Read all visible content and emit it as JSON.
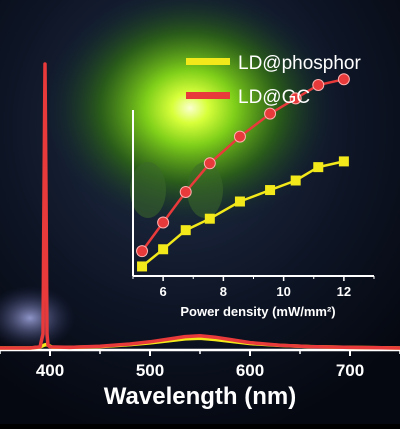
{
  "chart_data": [
    {
      "type": "line",
      "xlabel": "Wavelength (nm)",
      "ylabel": "",
      "xlim": [
        350,
        750
      ],
      "ylim": [
        0,
        1.0
      ],
      "xticks": [
        400,
        500,
        600,
        700
      ],
      "grid": false,
      "series": [
        {
          "name": "LD@phosphor",
          "color": "#f2e81a",
          "x": [
            350,
            380,
            390,
            394,
            396,
            398,
            402,
            420,
            450,
            480,
            500,
            520,
            535,
            550,
            565,
            580,
            600,
            630,
            660,
            700,
            750
          ],
          "y": [
            0.0,
            0.0,
            0.003,
            0.01,
            0.012,
            0.01,
            0.003,
            0.002,
            0.005,
            0.012,
            0.018,
            0.026,
            0.032,
            0.034,
            0.03,
            0.024,
            0.016,
            0.009,
            0.005,
            0.002,
            0.0
          ]
        },
        {
          "name": "LD@GC",
          "color": "#e83a3a",
          "x": [
            350,
            380,
            390,
            393,
            394,
            395,
            396,
            397,
            398,
            400,
            420,
            450,
            480,
            500,
            520,
            535,
            550,
            565,
            580,
            600,
            630,
            660,
            700,
            750
          ],
          "y": [
            0.0,
            0.0,
            0.004,
            0.05,
            0.55,
            1.0,
            0.55,
            0.05,
            0.01,
            0.004,
            0.002,
            0.006,
            0.014,
            0.022,
            0.032,
            0.04,
            0.043,
            0.038,
            0.03,
            0.019,
            0.01,
            0.005,
            0.002,
            0.0
          ]
        }
      ]
    },
    {
      "type": "line",
      "xlabel": "Power density (mW/mm²)",
      "ylabel": "",
      "xlim": [
        5.0,
        13.0
      ],
      "ylim": [
        0,
        1
      ],
      "xticks": [
        6,
        8,
        10,
        12
      ],
      "grid": false,
      "series": [
        {
          "name": "LD@phosphor",
          "color": "#f2e81a",
          "x": [
            5.3,
            6.0,
            6.75,
            7.55,
            8.55,
            9.55,
            10.4,
            11.15,
            12.0
          ],
          "y": [
            0.05,
            0.14,
            0.24,
            0.3,
            0.39,
            0.45,
            0.5,
            0.57,
            0.6
          ]
        },
        {
          "name": "LD@GC",
          "color": "#e83a3a",
          "x": [
            5.3,
            6.0,
            6.75,
            7.55,
            8.55,
            9.55,
            10.4,
            11.15,
            12.0
          ],
          "y": [
            0.13,
            0.28,
            0.44,
            0.59,
            0.73,
            0.85,
            0.93,
            1.0,
            1.03
          ]
        }
      ]
    }
  ],
  "legend": [
    {
      "label": "LD@phosphor",
      "color": "#f2e81a"
    },
    {
      "label": "LD@GC",
      "color": "#e83a3a"
    }
  ]
}
